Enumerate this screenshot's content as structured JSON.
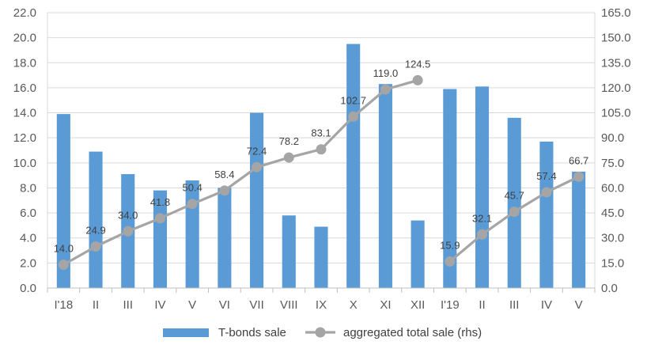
{
  "chart_data": {
    "type": "bar+line",
    "categories": [
      "I'18",
      "II",
      "III",
      "IV",
      "V",
      "VI",
      "VII",
      "VIII",
      "IX",
      "X",
      "XI",
      "XII",
      "I'19",
      "II",
      "III",
      "IV",
      "V"
    ],
    "series": [
      {
        "name": "T-bonds sale",
        "type": "bar",
        "axis": "left",
        "color": "#5b9bd5",
        "values": [
          13.9,
          10.9,
          9.1,
          7.8,
          8.6,
          8.0,
          14.0,
          5.8,
          4.9,
          19.5,
          16.3,
          5.4,
          15.9,
          16.1,
          13.6,
          11.7,
          9.3
        ]
      },
      {
        "name": "aggregated total sale (rhs)",
        "type": "line",
        "axis": "right",
        "color": "#a5a5a5",
        "segments": [
          [
            0,
            11
          ],
          [
            12,
            16
          ]
        ],
        "values": [
          14.0,
          24.9,
          34.0,
          41.8,
          50.4,
          58.4,
          72.4,
          78.2,
          83.1,
          102.7,
          119.0,
          124.5,
          15.9,
          32.1,
          45.7,
          57.4,
          66.7
        ],
        "labels": [
          "14.0",
          "24.9",
          "34.0",
          "41.8",
          "50.4",
          "58.4",
          "72.4",
          "78.2",
          "83.1",
          "102.7",
          "119.0",
          "124.5",
          "15.9",
          "32.1",
          "45.7",
          "57.4",
          "66.7"
        ]
      }
    ],
    "y_left": {
      "min": 0,
      "max": 22,
      "step": 2,
      "tick_labels": [
        "0.0",
        "2.0",
        "4.0",
        "6.0",
        "8.0",
        "10.0",
        "12.0",
        "14.0",
        "16.0",
        "18.0",
        "20.0",
        "22.0"
      ]
    },
    "y_right": {
      "min": 0,
      "max": 165,
      "step": 15,
      "tick_labels": [
        "0.0",
        "15.0",
        "30.0",
        "45.0",
        "60.0",
        "75.0",
        "90.0",
        "105.0",
        "120.0",
        "135.0",
        "150.0",
        "165.0"
      ]
    },
    "grid": true,
    "legend": {
      "position": "bottom",
      "items": [
        {
          "label": "T-bonds sale",
          "marker": "bar",
          "color": "#5b9bd5"
        },
        {
          "label": "aggregated total sale (rhs)",
          "marker": "line-dot",
          "color": "#a5a5a5"
        }
      ]
    }
  }
}
